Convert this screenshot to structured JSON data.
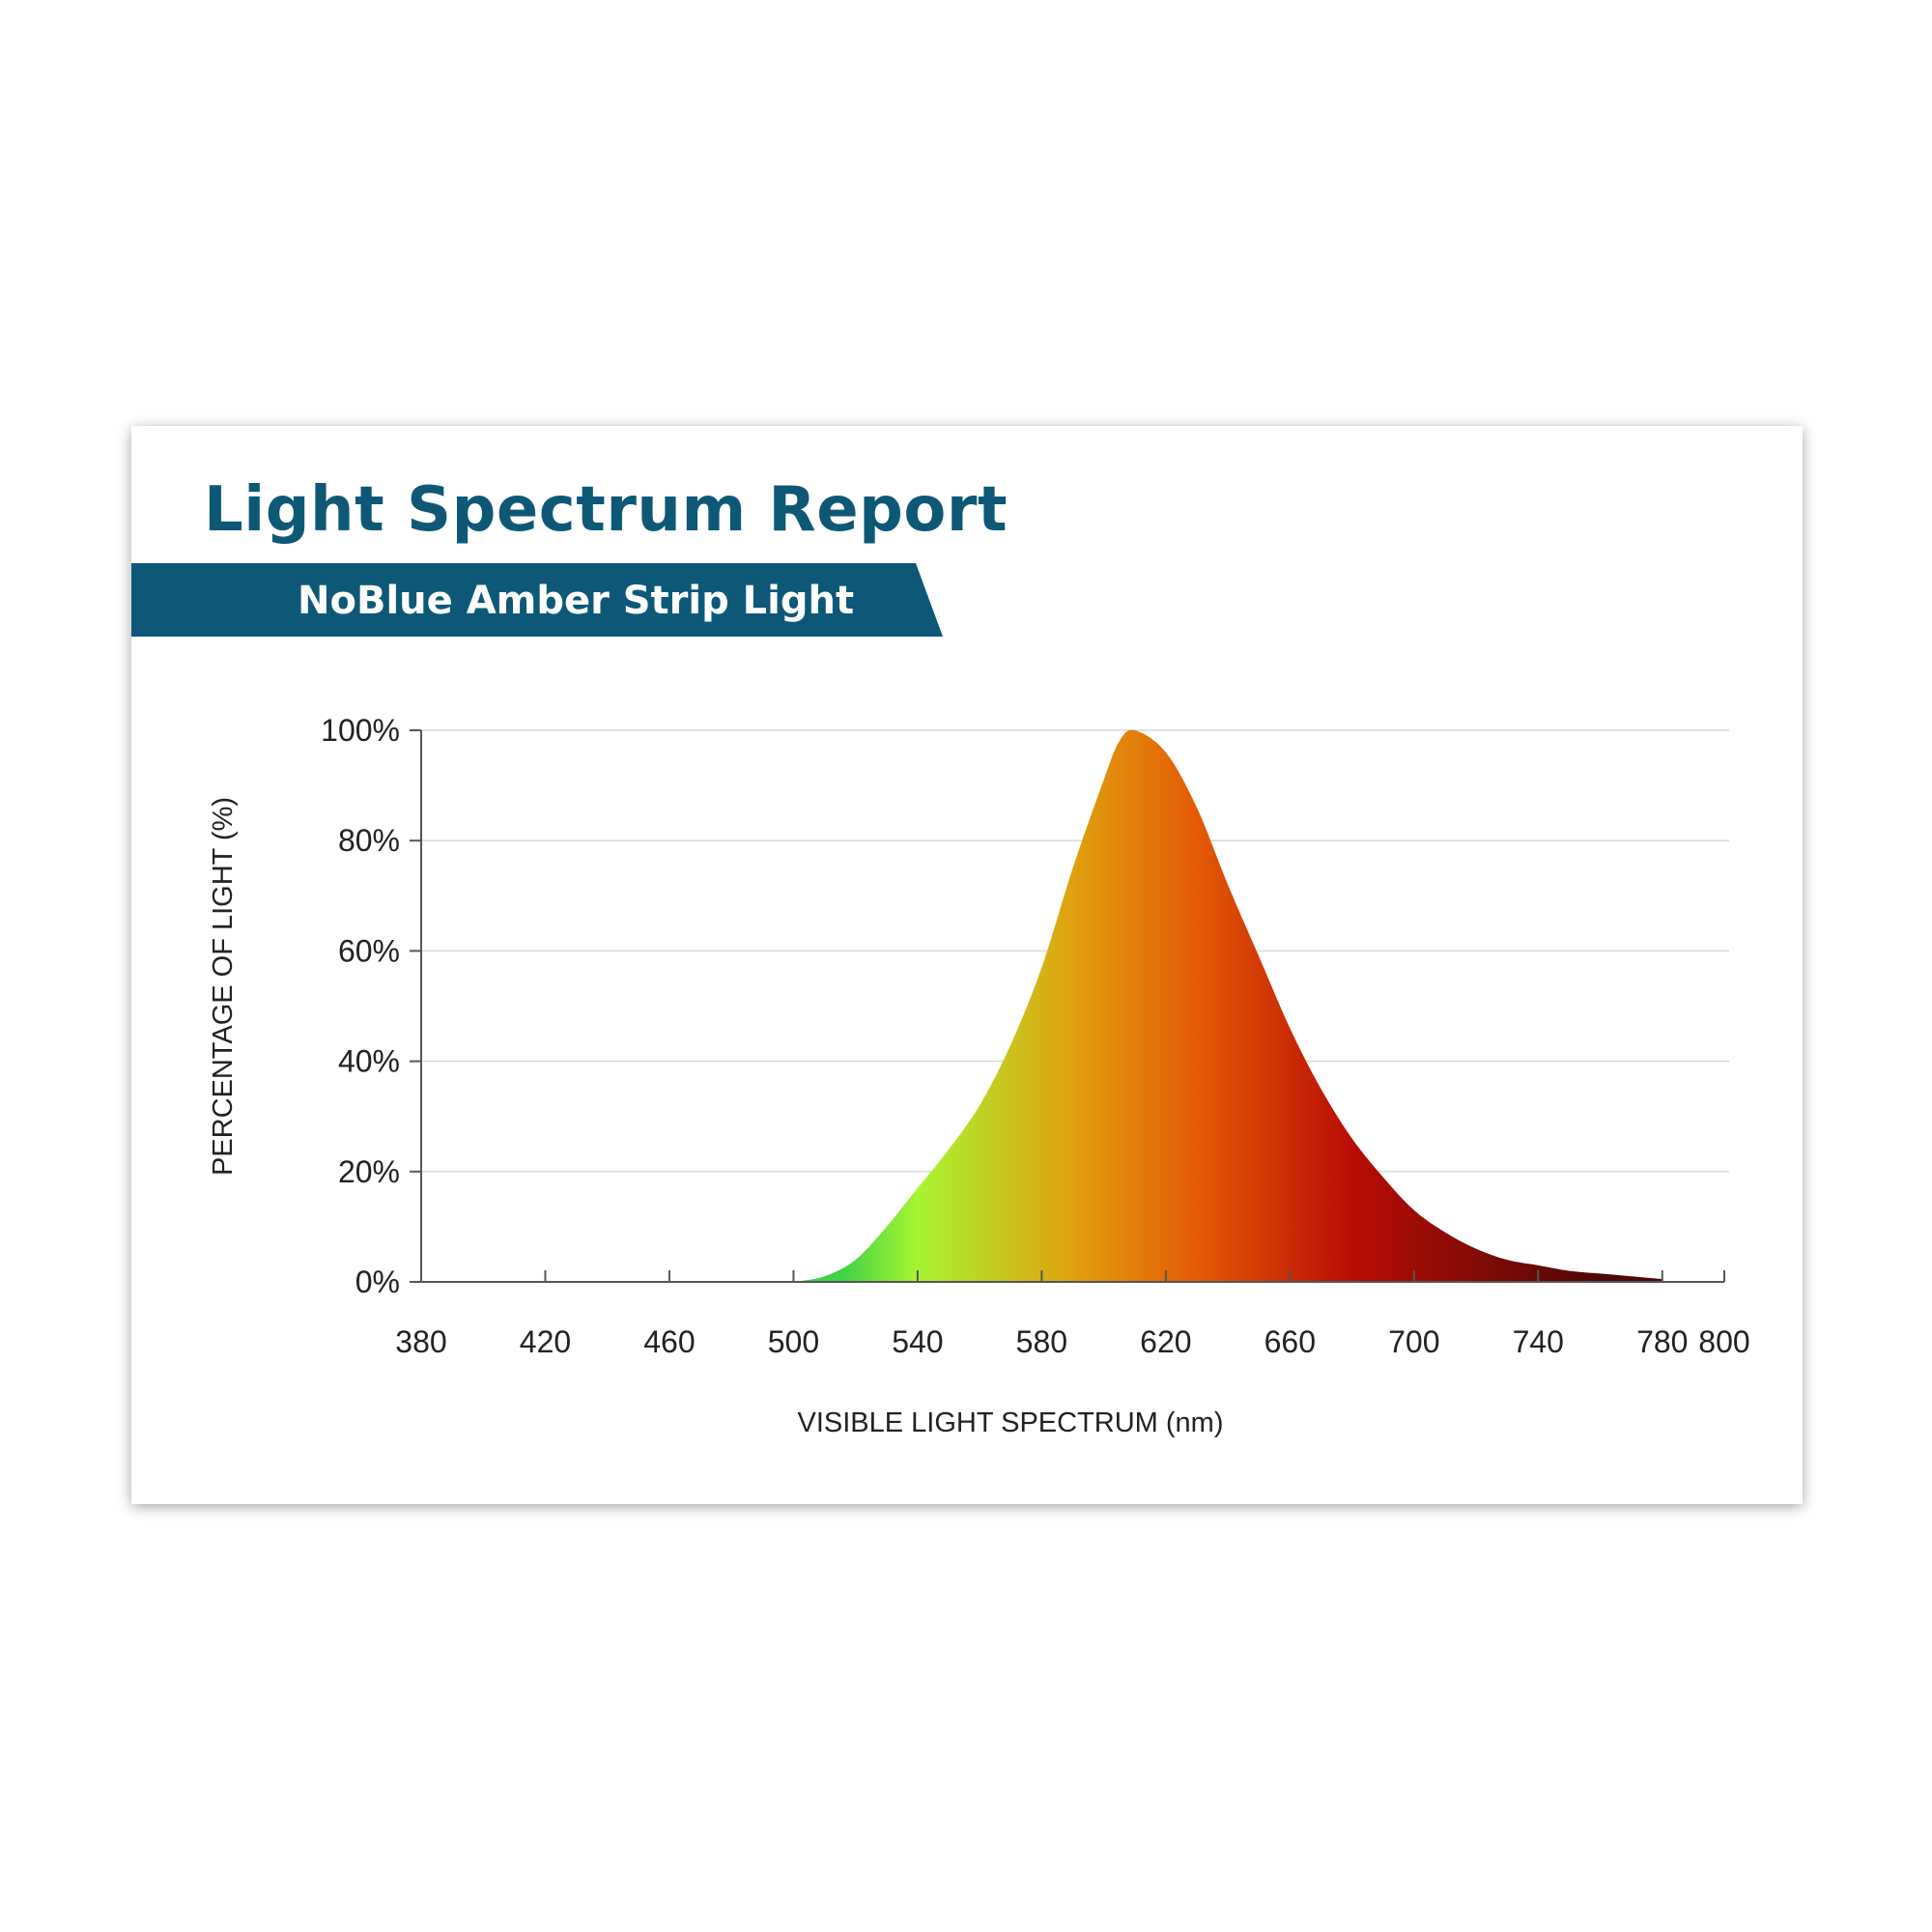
{
  "card": {
    "title": "Light Spectrum Report",
    "subtitle": "NoBlue Amber Strip Light"
  },
  "chart_data": {
    "type": "area",
    "title": "Light Spectrum Report",
    "subtitle": "NoBlue Amber Strip Light",
    "xlabel": "VISIBLE LIGHT SPECTRUM (nm)",
    "ylabel": "PERCENTAGE OF LIGHT (%)",
    "xlim": [
      380,
      800
    ],
    "ylim": [
      0,
      100
    ],
    "x_ticks": [
      380,
      420,
      460,
      500,
      540,
      580,
      620,
      660,
      700,
      740,
      780,
      800
    ],
    "x_tick_labels": [
      "380",
      "420",
      "460",
      "500",
      "540",
      "580",
      "620",
      "660",
      "700",
      "740",
      "780",
      "800"
    ],
    "y_ticks": [
      0,
      20,
      40,
      60,
      80,
      100
    ],
    "y_tick_labels": [
      "0%",
      "20%",
      "40%",
      "60%",
      "80%",
      "100%"
    ],
    "grid": true,
    "series": [
      {
        "x": [
          500,
          510,
          520,
          530,
          540,
          550,
          560,
          570,
          580,
          590,
          600,
          605,
          610,
          620,
          630,
          640,
          650,
          660,
          670,
          680,
          690,
          700,
          710,
          720,
          730,
          740,
          750,
          760,
          770,
          780
        ],
        "y": [
          0,
          1,
          4,
          10,
          17,
          24,
          32,
          43,
          57,
          75,
          91,
          98,
          100,
          96,
          86,
          72,
          59,
          46,
          35,
          26,
          19,
          13,
          9,
          6,
          4,
          3,
          2,
          1.5,
          1,
          0.5
        ]
      }
    ],
    "colors": {
      "green": "#3fd146",
      "yellow_green": "#a8f531",
      "amber": "#e0a10f",
      "orange": "#e45a05",
      "red": "#b80d05",
      "dark_red": "#4e0707",
      "header_blue": "#0e5877"
    }
  }
}
